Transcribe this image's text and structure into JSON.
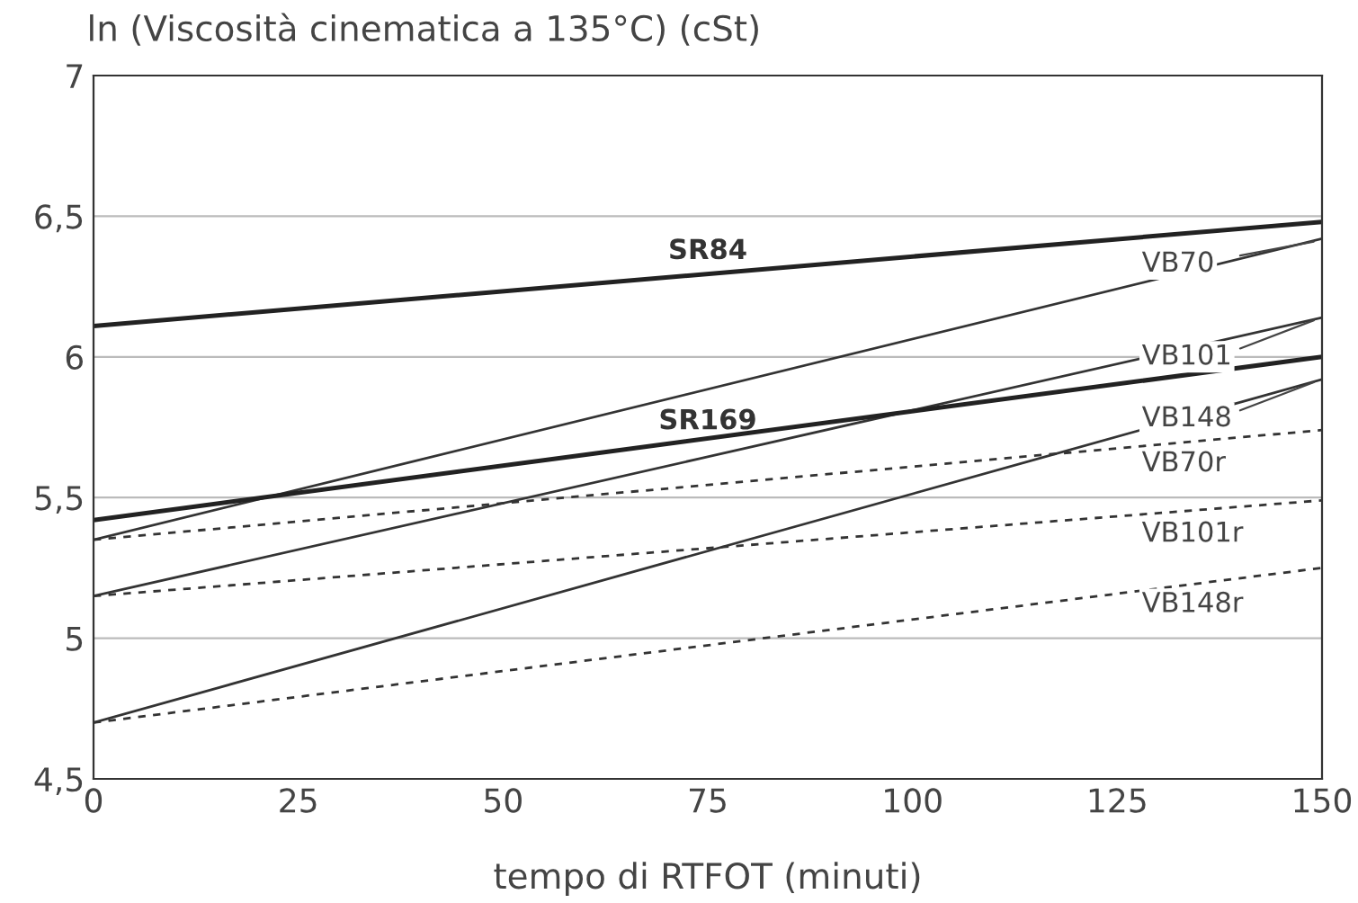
{
  "chart_data": {
    "type": "line",
    "ylabel": "ln (Viscosità cinematica a 135°C) (cSt)",
    "xlabel": "tempo di RTFOT (minuti)",
    "x": [
      0,
      150
    ],
    "xlim": [
      0,
      150
    ],
    "xticks": [
      0,
      25,
      50,
      75,
      100,
      125,
      150
    ],
    "ylim": [
      4.5,
      7
    ],
    "yticks": [
      {
        "value": 4.5,
        "label": "4,5"
      },
      5,
      {
        "value": 5.5,
        "label": "5,5"
      },
      6,
      {
        "value": 6.5,
        "label": "6,5"
      },
      7
    ],
    "grid": "y",
    "legend": false,
    "marker": "none",
    "series": [
      {
        "name": "SR84",
        "color": "#222222",
        "line_style": "solid",
        "values": [
          6.11,
          6.48
        ]
      },
      {
        "name": "VB70",
        "color": "#333333",
        "line_style": "solid",
        "values": [
          5.35,
          6.42
        ]
      },
      {
        "name": "VB101",
        "color": "#333333",
        "line_style": "solid",
        "values": [
          5.15,
          6.14
        ]
      },
      {
        "name": "SR169",
        "color": "#222222",
        "line_style": "solid",
        "values": [
          5.42,
          6.0
        ]
      },
      {
        "name": "VB148",
        "color": "#333333",
        "line_style": "solid",
        "values": [
          4.7,
          5.92
        ]
      },
      {
        "name": "VB70r",
        "color": "#333333",
        "line_style": "dashed",
        "values": [
          5.35,
          5.74
        ]
      },
      {
        "name": "VB101r",
        "color": "#333333",
        "line_style": "dashed",
        "values": [
          5.15,
          5.49
        ]
      },
      {
        "name": "VB148r",
        "color": "#333333",
        "line_style": "dashed",
        "values": [
          4.7,
          5.25
        ]
      }
    ]
  }
}
